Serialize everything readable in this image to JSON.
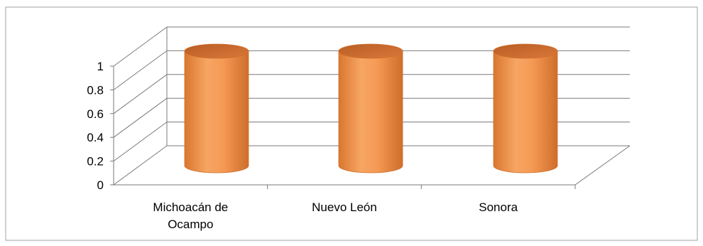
{
  "chart_data": {
    "type": "bar",
    "style": "3d-cylinder",
    "categories": [
      "Michoacán de Ocampo",
      "Nuevo León",
      "Sonora"
    ],
    "category_label_lines": [
      [
        "Michoacán de",
        "Ocampo"
      ],
      [
        "Nuevo León"
      ],
      [
        "Sonora"
      ]
    ],
    "values": [
      1,
      1,
      1
    ],
    "ylim": [
      0,
      1
    ],
    "yticks": [
      0,
      0.2,
      0.4,
      0.6,
      0.8,
      1
    ],
    "ytick_labels": [
      "0",
      "0.2",
      "0.4",
      "0.6",
      "0.8",
      "1"
    ],
    "title": "",
    "xlabel": "",
    "ylabel": "",
    "grid": true,
    "legend": "none",
    "colors": {
      "bar_body": "#f59a55",
      "bar_edge": "#d06f2b",
      "bar_top": "#c8682a",
      "gridline": "#7a7a7a",
      "axis": "#7a7a7a",
      "frame": "#a0a0a0"
    }
  }
}
